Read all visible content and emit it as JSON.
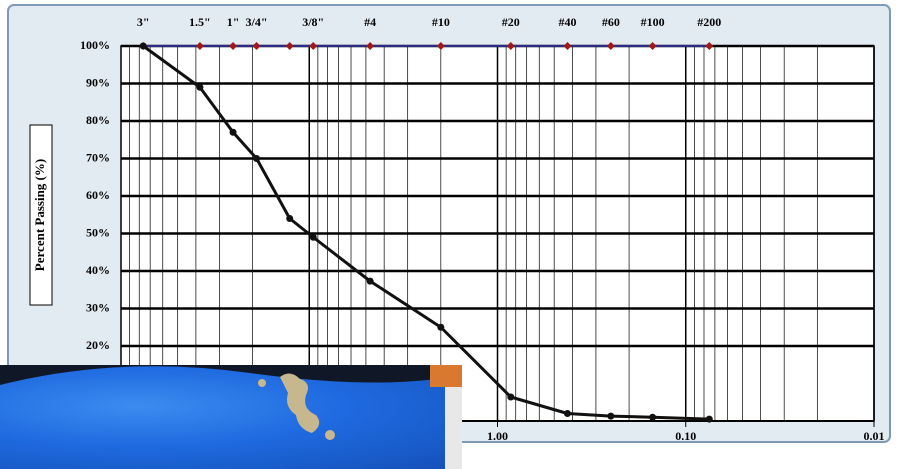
{
  "chart_data": {
    "type": "line",
    "y_label": "Percent Passing (%)",
    "x": [
      76.2,
      38.1,
      25.4,
      19.05,
      12.7,
      9.525,
      4.75,
      2.0,
      0.85,
      0.425,
      0.25,
      0.15,
      0.075
    ],
    "sieve_labels": [
      "3\"",
      "1.5\"",
      "1\"",
      "3/4\"",
      null,
      "3/8\"",
      "#4",
      "#10",
      "#20",
      "#40",
      "#60",
      "#100",
      "#200"
    ],
    "series": [
      {
        "color": "#111111",
        "values": [
          100,
          89,
          77,
          70,
          54,
          49,
          37.3,
          25,
          6.4,
          2,
          1.3,
          1,
          0.5
        ]
      }
    ],
    "xlim": [
      100,
      0.01
    ],
    "xticks": [
      {
        "value": 1,
        "label": "1.00"
      },
      {
        "value": 0.1,
        "label": "0.10"
      },
      {
        "value": 0.01,
        "label": "0.01"
      }
    ],
    "ylim": [
      0,
      100
    ],
    "yticks": [
      {
        "value": 100,
        "label": "100%"
      },
      {
        "value": 90,
        "label": "90%"
      },
      {
        "value": 80,
        "label": "80%"
      },
      {
        "value": 70,
        "label": "70%"
      },
      {
        "value": 60,
        "label": "60%"
      },
      {
        "value": 50,
        "label": "50%"
      },
      {
        "value": 40,
        "label": "40%"
      },
      {
        "value": 30,
        "label": "30%"
      },
      {
        "value": 20,
        "label": "20%"
      }
    ],
    "log_x": true,
    "grid": true,
    "sieve_marker_color": "#a01818"
  }
}
